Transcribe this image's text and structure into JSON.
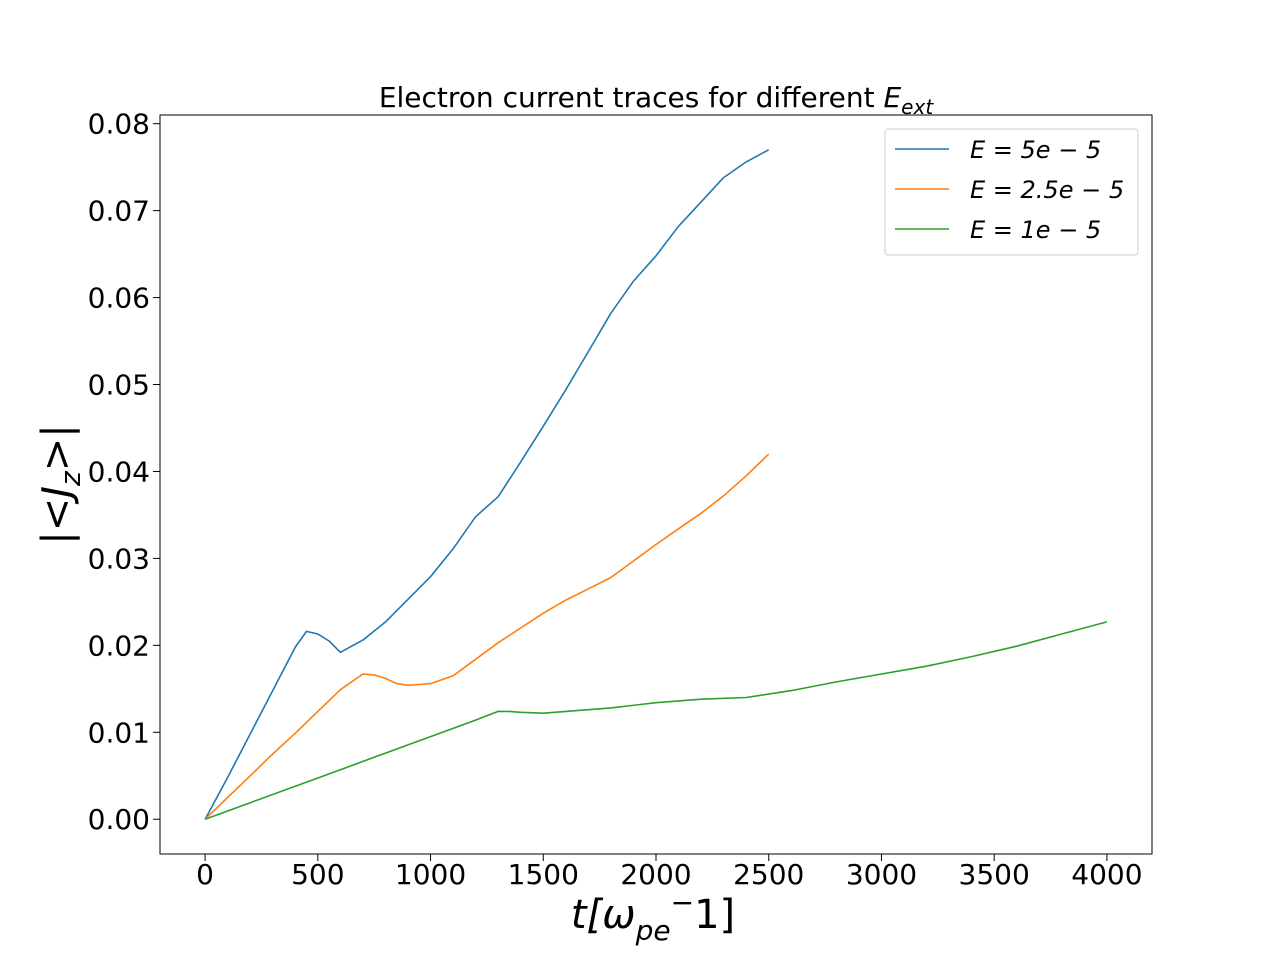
{
  "chart_data": {
    "type": "line",
    "title": "Electron current traces for different ",
    "title_math": {
      "base": "E",
      "sub": "ext"
    },
    "xlabel": {
      "base": "t[ω",
      "sub": "pe",
      "sup": "−",
      "tail": "1]"
    },
    "ylabel": "|<J",
    "ylabel_sub": "z",
    "ylabel_tail": ">|",
    "xlim": [
      -200,
      4200
    ],
    "ylim": [
      -0.004,
      0.081
    ],
    "x_ticks": [
      0,
      500,
      1000,
      1500,
      2000,
      2500,
      3000,
      3500,
      4000
    ],
    "x_tick_labels": [
      "0",
      "500",
      "1000",
      "1500",
      "2000",
      "2500",
      "3000",
      "3500",
      "4000"
    ],
    "y_ticks": [
      0.0,
      0.01,
      0.02,
      0.03,
      0.04,
      0.05,
      0.06,
      0.07,
      0.08
    ],
    "y_tick_labels": [
      "0.00",
      "0.01",
      "0.02",
      "0.03",
      "0.04",
      "0.05",
      "0.06",
      "0.07",
      "0.08"
    ],
    "grid": false,
    "legend_position": "top-right",
    "series": [
      {
        "name": "E = 5e − 5",
        "color": "#1f77b4",
        "x": [
          0,
          100,
          200,
          300,
          400,
          450,
          500,
          550,
          600,
          650,
          700,
          800,
          900,
          1000,
          1100,
          1200,
          1300,
          1400,
          1500,
          1600,
          1700,
          1800,
          1900,
          2000,
          2100,
          2200,
          2300,
          2400,
          2500
        ],
        "y": [
          0.0,
          0.0048,
          0.0098,
          0.0148,
          0.0198,
          0.0216,
          0.0213,
          0.0205,
          0.0192,
          0.0199,
          0.0206,
          0.0227,
          0.0253,
          0.0279,
          0.0311,
          0.0348,
          0.0371,
          0.0411,
          0.0452,
          0.0494,
          0.0538,
          0.0582,
          0.0619,
          0.0648,
          0.0682,
          0.071,
          0.0738,
          0.0756,
          0.077
        ]
      },
      {
        "name": "E = 2.5e − 5",
        "color": "#ff7f0e",
        "x": [
          0,
          100,
          200,
          300,
          400,
          500,
          600,
          700,
          750,
          800,
          850,
          900,
          950,
          1000,
          1100,
          1200,
          1300,
          1400,
          1500,
          1600,
          1700,
          1800,
          1900,
          2000,
          2100,
          2200,
          2300,
          2400,
          2500
        ],
        "y": [
          0.0,
          0.0025,
          0.005,
          0.0075,
          0.0099,
          0.0124,
          0.0149,
          0.0167,
          0.0166,
          0.0162,
          0.0156,
          0.0154,
          0.0155,
          0.0156,
          0.0165,
          0.0184,
          0.0203,
          0.022,
          0.0237,
          0.0252,
          0.0265,
          0.0278,
          0.0297,
          0.0316,
          0.0334,
          0.0352,
          0.0372,
          0.0395,
          0.042
        ]
      },
      {
        "name": "E = 1e − 5",
        "color": "#2ca02c",
        "x": [
          0,
          200,
          400,
          600,
          800,
          1000,
          1200,
          1300,
          1350,
          1400,
          1500,
          1600,
          1800,
          2000,
          2200,
          2400,
          2600,
          2800,
          3000,
          3200,
          3400,
          3600,
          3800,
          4000
        ],
        "y": [
          0.0,
          0.0019,
          0.0038,
          0.0057,
          0.0076,
          0.0095,
          0.0114,
          0.0124,
          0.0124,
          0.0123,
          0.0122,
          0.0124,
          0.0128,
          0.0134,
          0.0138,
          0.014,
          0.0148,
          0.0158,
          0.0167,
          0.0176,
          0.0187,
          0.0199,
          0.0213,
          0.0227
        ]
      }
    ]
  }
}
